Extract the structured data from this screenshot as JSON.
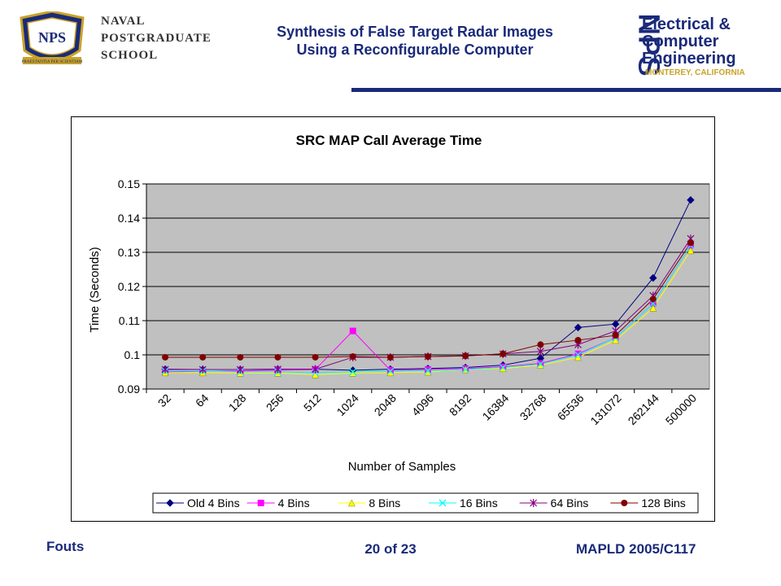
{
  "header": {
    "title_line1": "Synthesis of False Target Radar Images",
    "title_line2": "Using a Reconfigurable Computer",
    "left_logo_lines": [
      "NAVAL",
      "POSTGRADUATE",
      "SCHOOL"
    ],
    "left_logo_seal_text": "NPS",
    "left_logo_motto": "PRAESTANTIA PER SCIENTIAM",
    "right_logo_letters": "NPS",
    "right_logo_lines": [
      "Electrical &",
      "Computer",
      "Engineering"
    ],
    "right_logo_location": "MONTEREY, CALIFORNIA"
  },
  "footer": {
    "author": "Fouts",
    "page": "20 of 23",
    "venue": "MAPLD 2005/C117"
  },
  "colors": {
    "header_text": "#1a2a7a",
    "plot_area": "#c0c0c0",
    "rule": "#1a2a7a"
  },
  "chart_data": {
    "type": "line",
    "title": "SRC MAP Call Average Time",
    "xlabel": "Number of Samples",
    "ylabel": "Time (Seconds)",
    "categories": [
      "32",
      "64",
      "128",
      "256",
      "512",
      "1024",
      "2048",
      "4096",
      "8192",
      "16384",
      "32768",
      "65536",
      "131072",
      "262144",
      "500000"
    ],
    "ylim": [
      0.09,
      0.15
    ],
    "yticks": [
      "0.09",
      "0.1",
      "0.11",
      "0.12",
      "0.13",
      "0.14",
      "0.15"
    ],
    "grid": "horizontal",
    "legend_position": "bottom",
    "series": [
      {
        "name": "Old 4 Bins",
        "color": "#000080",
        "marker": "diamond",
        "values": [
          0.0958,
          0.0957,
          0.0957,
          0.0958,
          0.0958,
          0.0955,
          0.0958,
          0.096,
          0.0963,
          0.097,
          0.099,
          0.108,
          0.109,
          0.1225,
          0.1453
        ]
      },
      {
        "name": "4 Bins",
        "color": "#ff00ff",
        "marker": "square",
        "values": [
          0.095,
          0.0952,
          0.0953,
          0.0955,
          0.0957,
          0.107,
          0.0955,
          0.0957,
          0.096,
          0.0965,
          0.0975,
          0.1003,
          0.105,
          0.115,
          0.132
        ]
      },
      {
        "name": "8 Bins",
        "color": "#ffff00",
        "marker": "triangle",
        "values": [
          0.0948,
          0.0948,
          0.0947,
          0.0947,
          0.0942,
          0.0947,
          0.0948,
          0.095,
          0.0957,
          0.096,
          0.097,
          0.0993,
          0.1043,
          0.1137,
          0.1305
        ]
      },
      {
        "name": "16 Bins",
        "color": "#00ffff",
        "marker": "x",
        "values": [
          0.0953,
          0.0953,
          0.095,
          0.095,
          0.0948,
          0.095,
          0.0952,
          0.0953,
          0.0957,
          0.0963,
          0.0973,
          0.1,
          0.105,
          0.115,
          0.132
        ]
      },
      {
        "name": "64 Bins",
        "color": "#800080",
        "marker": "star",
        "values": [
          0.0957,
          0.0957,
          0.0957,
          0.0958,
          0.0958,
          0.0993,
          0.0993,
          0.0995,
          0.0997,
          0.1003,
          0.101,
          0.103,
          0.107,
          0.1173,
          0.134
        ]
      },
      {
        "name": "128 Bins",
        "color": "#800000",
        "marker": "circle",
        "values": [
          0.0993,
          0.0993,
          0.0993,
          0.0993,
          0.0993,
          0.0995,
          0.0993,
          0.0995,
          0.0997,
          0.1003,
          0.103,
          0.1043,
          0.1057,
          0.1163,
          0.1328
        ]
      }
    ]
  }
}
